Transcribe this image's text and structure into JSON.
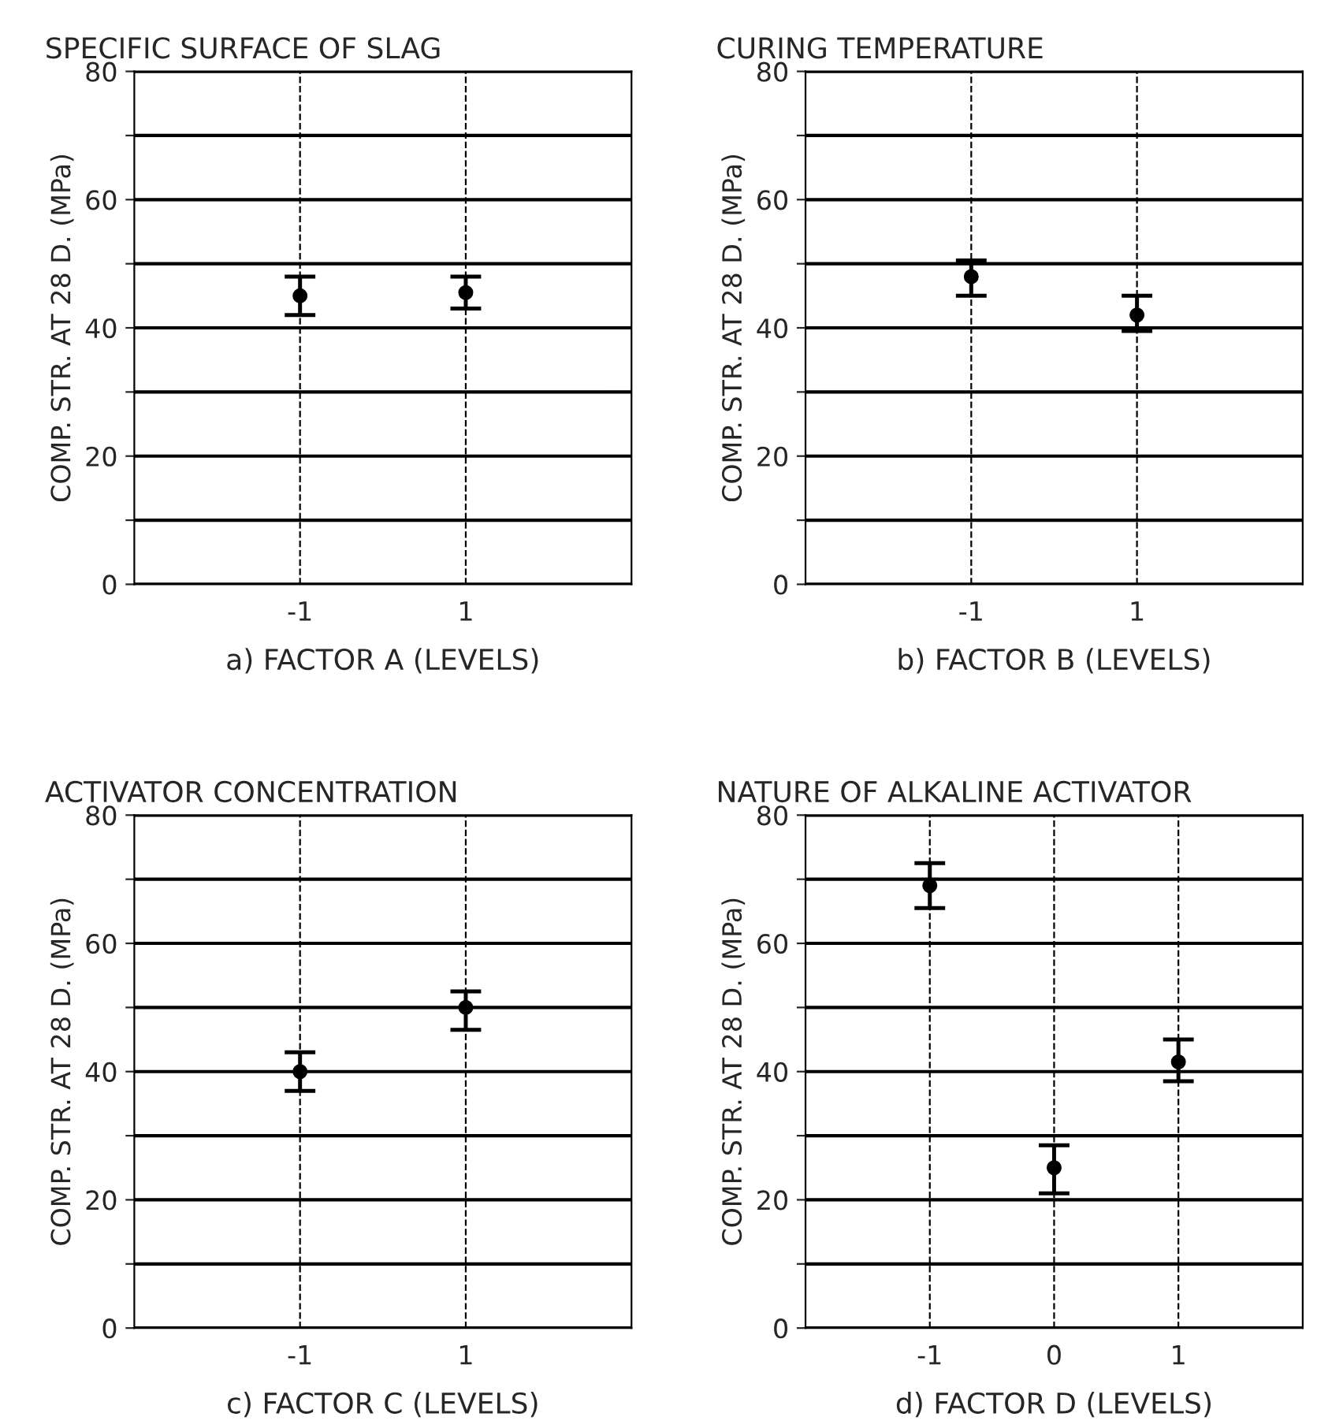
{
  "chart_data": [
    {
      "type": "scatter",
      "title": "SPECIFIC SURFACE OF SLAG",
      "xlabel": "a) FACTOR A (LEVELS)",
      "ylabel": "COMP. STR. AT 28 D. (MPa)",
      "categories": [
        "-1",
        "1"
      ],
      "values": [
        45,
        45.5
      ],
      "errors": [
        [
          42,
          48
        ],
        [
          43,
          48
        ]
      ],
      "color": "#000000",
      "marker": "circle",
      "ylim": [
        0,
        80
      ],
      "yticks": [
        0,
        {
          "value": 10,
          "label": null
        },
        20,
        {
          "value": 30,
          "label": null
        },
        40,
        {
          "value": 50,
          "label": null
        },
        60,
        {
          "value": 70,
          "label": null
        },
        80
      ],
      "grid": true
    },
    {
      "type": "scatter",
      "title": "CURING TEMPERATURE",
      "xlabel": "b) FACTOR B (LEVELS)",
      "ylabel": "COMP. STR. AT 28 D. (MPa)",
      "categories": [
        "-1",
        "1"
      ],
      "values": [
        48,
        42
      ],
      "errors": [
        [
          45,
          50.5
        ],
        [
          39.5,
          45
        ]
      ],
      "color": "#000000",
      "marker": "circle",
      "ylim": [
        0,
        80
      ],
      "yticks": [
        0,
        {
          "value": 10,
          "label": null
        },
        20,
        {
          "value": 30,
          "label": null
        },
        40,
        {
          "value": 50,
          "label": null
        },
        60,
        {
          "value": 70,
          "label": null
        },
        80
      ],
      "grid": true
    },
    {
      "type": "scatter",
      "title": "ACTIVATOR CONCENTRATION",
      "xlabel": "c) FACTOR C (LEVELS)",
      "ylabel": "COMP. STR. AT 28 D. (MPa)",
      "categories": [
        "-1",
        "1"
      ],
      "values": [
        40,
        50
      ],
      "errors": [
        [
          37,
          43
        ],
        [
          46.5,
          52.5
        ]
      ],
      "color": "#000000",
      "marker": "circle",
      "ylim": [
        0,
        80
      ],
      "yticks": [
        0,
        {
          "value": 10,
          "label": null
        },
        20,
        {
          "value": 30,
          "label": null
        },
        40,
        {
          "value": 50,
          "label": null
        },
        60,
        {
          "value": 70,
          "label": null
        },
        80
      ],
      "grid": true
    },
    {
      "type": "scatter",
      "title": "NATURE OF ALKALINE ACTIVATOR",
      "xlabel": "d) FACTOR D (LEVELS)",
      "ylabel": "COMP. STR. AT 28 D. (MPa)",
      "categories": [
        "-1",
        "0",
        "1"
      ],
      "values": [
        69,
        25,
        41.5
      ],
      "errors": [
        [
          65.5,
          72.5
        ],
        [
          21,
          28.5
        ],
        [
          38.5,
          45
        ]
      ],
      "color": "#000000",
      "marker": "circle",
      "ylim": [
        0,
        80
      ],
      "yticks": [
        0,
        {
          "value": 10,
          "label": null
        },
        20,
        {
          "value": 30,
          "label": null
        },
        40,
        {
          "value": 50,
          "label": null
        },
        60,
        {
          "value": 70,
          "label": null
        },
        80
      ],
      "grid": true
    }
  ]
}
